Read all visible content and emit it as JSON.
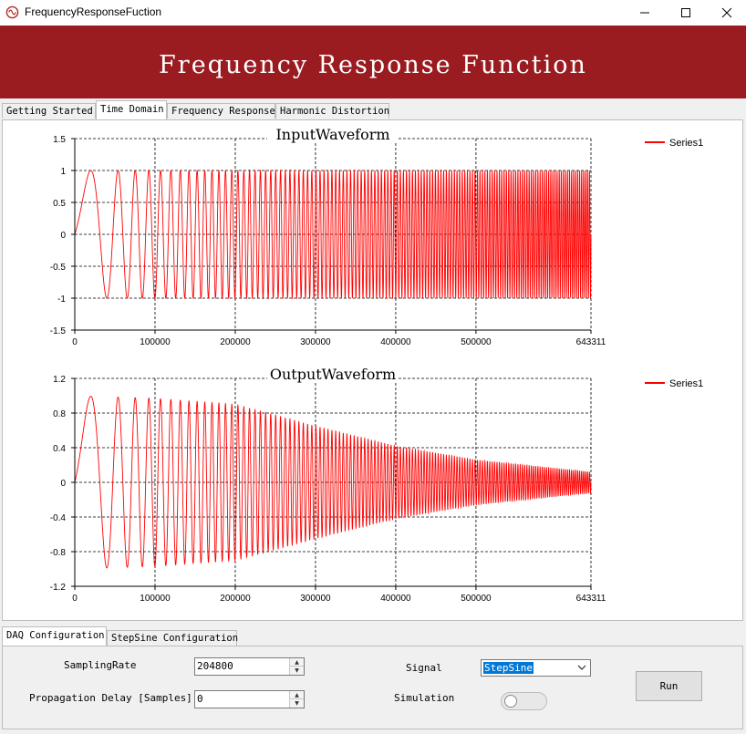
{
  "window": {
    "title": "FrequencyResponseFuction"
  },
  "banner": {
    "title": "Frequency Response Function"
  },
  "top_tabs": [
    {
      "label": "Getting Started",
      "active": false
    },
    {
      "label": "Time Domain",
      "active": true
    },
    {
      "label": "Frequency Response",
      "active": false
    },
    {
      "label": "Harmonic Distortion",
      "active": false
    }
  ],
  "bottom_tabs": [
    {
      "label": "DAQ Configuration",
      "active": true
    },
    {
      "label": "StepSine Configuration",
      "active": false
    }
  ],
  "config": {
    "sampling_rate_label": "SamplingRate",
    "sampling_rate_value": "204800",
    "propagation_delay_label": "Propagation Delay [Samples]",
    "propagation_delay_value": "0",
    "signal_label": "Signal",
    "signal_value": "StepSine",
    "simulation_label": "Simulation",
    "simulation_on": false,
    "run_label": "Run"
  },
  "colors": {
    "banner": "#9b1c20",
    "series": "#ff0000"
  },
  "chart_data": [
    {
      "type": "line",
      "title": "InputWaveform",
      "xlim": [
        0,
        643311
      ],
      "ylim": [
        -1.5,
        1.5
      ],
      "xticks": [
        0,
        100000,
        200000,
        300000,
        400000,
        500000,
        643311
      ],
      "xtick_labels": [
        "0",
        "100000",
        "200000",
        "300000",
        "400000",
        "500000",
        "643311"
      ],
      "yticks": [
        1.5,
        1,
        0.5,
        0,
        -0.5,
        -1,
        -1.5
      ],
      "ytick_labels": [
        "1.5",
        "1",
        "0.5",
        "0",
        "-0.5",
        "-1",
        "-1.5"
      ],
      "grid": true,
      "legend_position": "top-right",
      "series": [
        {
          "name": "Series1",
          "color": "#ff0000",
          "signal": "stepped sine, amplitude 1 (peak-to-peak -1 to 1), frequency increasing with x",
          "envelope": [
            [
              0,
              1
            ],
            [
              643311,
              1
            ]
          ]
        }
      ]
    },
    {
      "type": "line",
      "title": "OutputWaveform",
      "xlim": [
        0,
        643311
      ],
      "ylim": [
        -1.2,
        1.2
      ],
      "xticks": [
        0,
        100000,
        200000,
        300000,
        400000,
        500000,
        643311
      ],
      "xtick_labels": [
        "0",
        "100000",
        "200000",
        "300000",
        "400000",
        "500000",
        "643311"
      ],
      "yticks": [
        1.2,
        0.8,
        0.4,
        0,
        -0.4,
        -0.8,
        -1.2
      ],
      "ytick_labels": [
        "1.2",
        "0.8",
        "0.4",
        "0",
        "-0.4",
        "-0.8",
        "-1.2"
      ],
      "grid": true,
      "legend_position": "top-right",
      "series": [
        {
          "name": "Series1",
          "color": "#ff0000",
          "signal": "stepped sine response, amplitude decays with frequency",
          "envelope": [
            [
              0,
              1.0
            ],
            [
              100000,
              0.97
            ],
            [
              200000,
              0.9
            ],
            [
              300000,
              0.65
            ],
            [
              400000,
              0.42
            ],
            [
              500000,
              0.26
            ],
            [
              643311,
              0.12
            ]
          ]
        }
      ]
    }
  ]
}
